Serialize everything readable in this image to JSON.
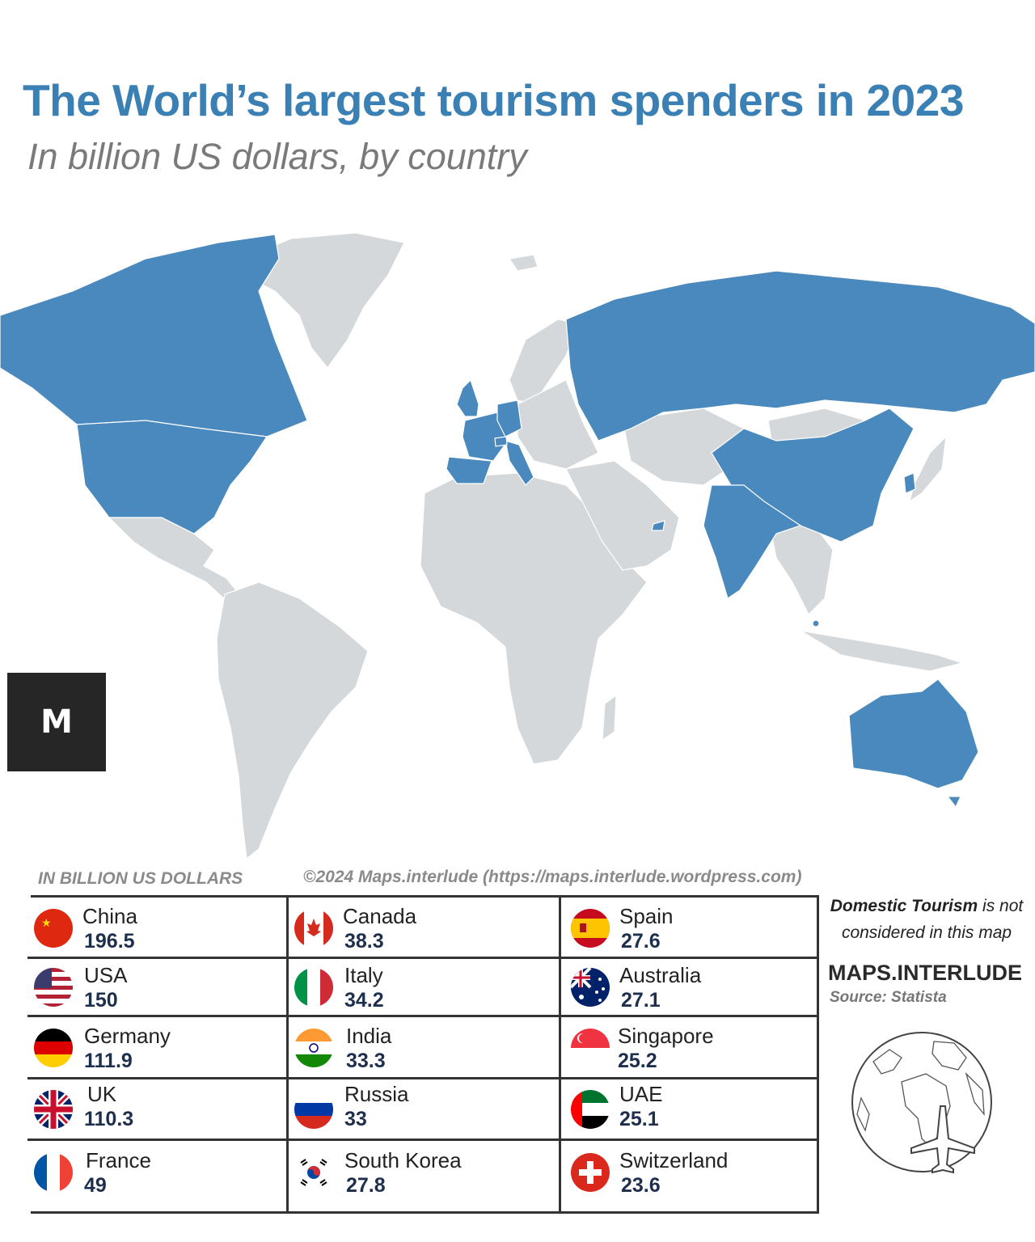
{
  "title": "The World’s largest tourism spenders in 2023",
  "subtitle": "In billion US dollars, by country",
  "logo_text": "M",
  "units_label": "IN BILLION US DOLLARS",
  "copyright": "©2024 Maps.interlude (https://maps.interlude.wordpress.com)",
  "note": {
    "bold": "Domestic Tourism",
    "rest": " is not considered in this map"
  },
  "brand": "MAPS.INTERLUDE",
  "source": "Source: Statista",
  "colors": {
    "highlight": "#4a89bd",
    "land": "#d4d8db",
    "title": "#3a80b4"
  },
  "highlighted_countries": [
    "China",
    "USA",
    "Germany",
    "UK",
    "France",
    "Canada",
    "Italy",
    "India",
    "Russia",
    "South Korea",
    "Spain",
    "Australia",
    "Singapore",
    "UAE",
    "Switzerland"
  ],
  "table": {
    "columns": [
      [
        {
          "name": "China",
          "value": "196.5",
          "flag": "china-flag"
        },
        {
          "name": "USA",
          "value": "150",
          "flag": "usa-flag"
        },
        {
          "name": "Germany",
          "value": "111.9",
          "flag": "germany-flag"
        },
        {
          "name": "UK",
          "value": "110.3",
          "flag": "uk-flag"
        },
        {
          "name": "France",
          "value": "49",
          "flag": "france-flag"
        }
      ],
      [
        {
          "name": "Canada",
          "value": "38.3",
          "flag": "canada-flag"
        },
        {
          "name": "Italy",
          "value": "34.2",
          "flag": "italy-flag"
        },
        {
          "name": "India",
          "value": "33.3",
          "flag": "india-flag"
        },
        {
          "name": "Russia",
          "value": "33",
          "flag": "russia-flag"
        },
        {
          "name": "South Korea",
          "value": "27.8",
          "flag": "south-korea-flag"
        }
      ],
      [
        {
          "name": "Spain",
          "value": "27.6",
          "flag": "spain-flag"
        },
        {
          "name": "Australia",
          "value": "27.1",
          "flag": "australia-flag"
        },
        {
          "name": "Singapore",
          "value": "25.2",
          "flag": "singapore-flag"
        },
        {
          "name": "UAE",
          "value": "25.1",
          "flag": "uae-flag"
        },
        {
          "name": "Switzerland",
          "value": "23.6",
          "flag": "switzerland-flag"
        }
      ]
    ]
  }
}
